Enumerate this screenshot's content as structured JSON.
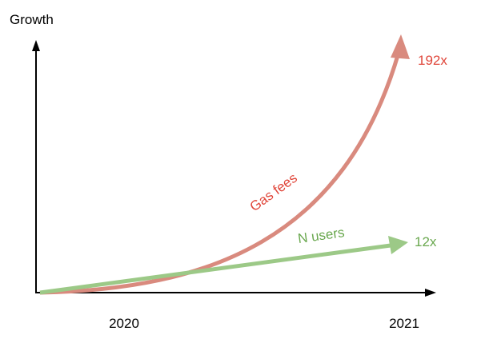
{
  "axes": {
    "y_label": "Growth",
    "x_start": "2020",
    "x_end": "2021"
  },
  "curves": [
    {
      "label": "Gas fees",
      "end_label": "192x"
    },
    {
      "label": "N users",
      "end_label": "12x"
    }
  ]
}
